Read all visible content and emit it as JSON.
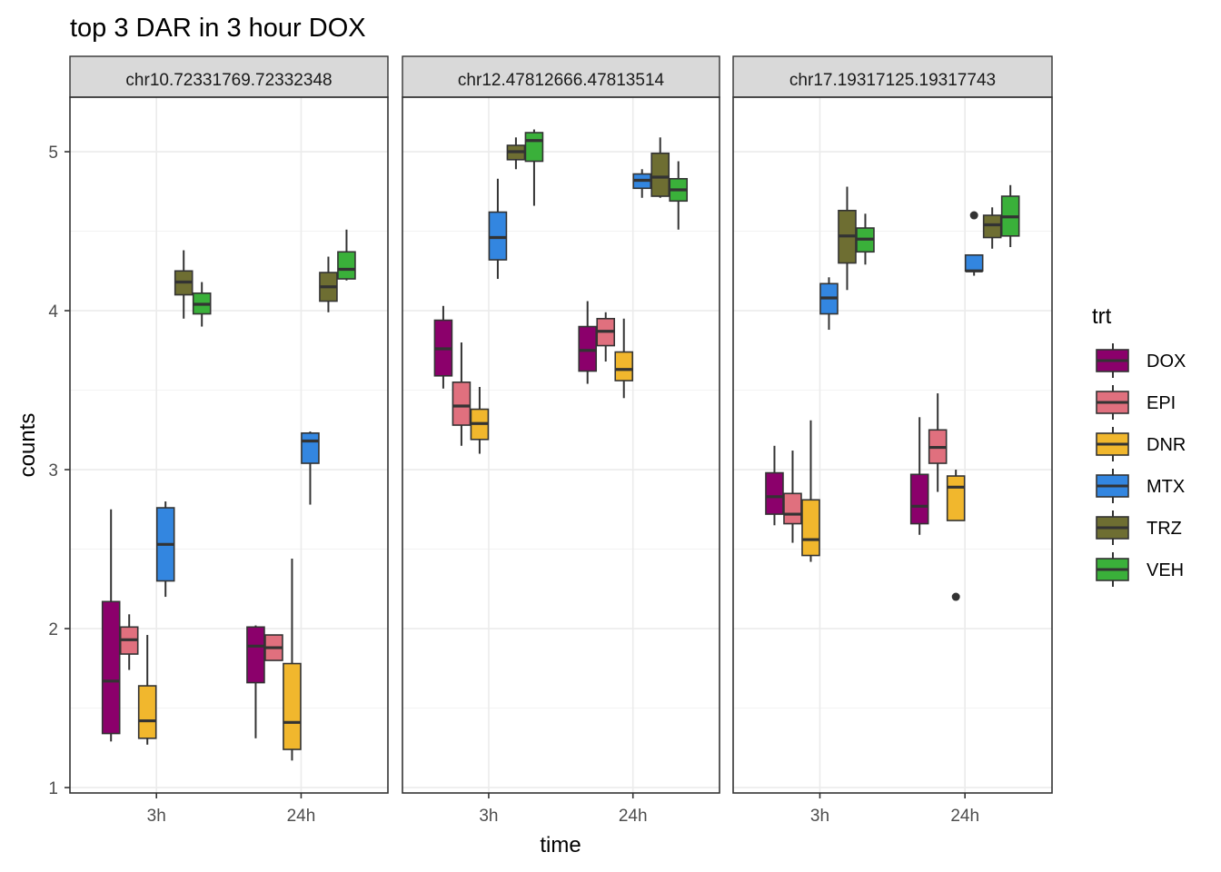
{
  "chart_data": {
    "type": "boxplot",
    "title": "top 3 DAR in 3 hour DOX",
    "xlabel": "time",
    "ylabel": "counts",
    "ylim": [
      0.966,
      5.343
    ],
    "yticks": [
      1,
      2,
      3,
      4,
      5
    ],
    "y_tick_labels": [
      "1",
      "2",
      "3",
      "4",
      "5"
    ],
    "categories": [
      "3h",
      "24h"
    ],
    "grid": true,
    "legend": {
      "title": "trt",
      "position": "right",
      "entries": [
        {
          "name": "DOX",
          "color": "#8b006b"
        },
        {
          "name": "EPI",
          "color": "#e0707e"
        },
        {
          "name": "DNR",
          "color": "#f1b72d"
        },
        {
          "name": "MTX",
          "color": "#3386e0"
        },
        {
          "name": "TRZ",
          "color": "#6e6e32"
        },
        {
          "name": "VEH",
          "color": "#3ab03a"
        }
      ]
    },
    "panels": [
      {
        "label": "chr10.72331769.72332348",
        "groups": {
          "3h": [
            {
              "trt": "DOX",
              "whisker_low": 1.29,
              "q1": 1.34,
              "median": 1.67,
              "q3": 2.17,
              "whisker_high": 2.75,
              "outliers": []
            },
            {
              "trt": "EPI",
              "whisker_low": 1.74,
              "q1": 1.84,
              "median": 1.93,
              "q3": 2.01,
              "whisker_high": 2.09,
              "outliers": []
            },
            {
              "trt": "DNR",
              "whisker_low": 1.27,
              "q1": 1.31,
              "median": 1.42,
              "q3": 1.64,
              "whisker_high": 1.96,
              "outliers": []
            },
            {
              "trt": "MTX",
              "whisker_low": 2.2,
              "q1": 2.3,
              "median": 2.53,
              "q3": 2.76,
              "whisker_high": 2.8,
              "outliers": []
            },
            {
              "trt": "TRZ",
              "whisker_low": 3.95,
              "q1": 4.1,
              "median": 4.18,
              "q3": 4.25,
              "whisker_high": 4.38,
              "outliers": []
            },
            {
              "trt": "VEH",
              "whisker_low": 3.9,
              "q1": 3.98,
              "median": 4.04,
              "q3": 4.11,
              "whisker_high": 4.18,
              "outliers": []
            }
          ],
          "24h": [
            {
              "trt": "DOX",
              "whisker_low": 1.31,
              "q1": 1.66,
              "median": 1.89,
              "q3": 2.01,
              "whisker_high": 2.02,
              "outliers": []
            },
            {
              "trt": "EPI",
              "whisker_low": 1.8,
              "q1": 1.8,
              "median": 1.88,
              "q3": 1.96,
              "whisker_high": 1.96,
              "outliers": []
            },
            {
              "trt": "DNR",
              "whisker_low": 1.17,
              "q1": 1.24,
              "median": 1.41,
              "q3": 1.78,
              "whisker_high": 2.44,
              "outliers": []
            },
            {
              "trt": "MTX",
              "whisker_low": 2.78,
              "q1": 3.04,
              "median": 3.18,
              "q3": 3.23,
              "whisker_high": 3.24,
              "outliers": []
            },
            {
              "trt": "TRZ",
              "whisker_low": 3.99,
              "q1": 4.06,
              "median": 4.15,
              "q3": 4.24,
              "whisker_high": 4.34,
              "outliers": []
            },
            {
              "trt": "VEH",
              "whisker_low": 4.19,
              "q1": 4.2,
              "median": 4.26,
              "q3": 4.37,
              "whisker_high": 4.51,
              "outliers": []
            }
          ]
        }
      },
      {
        "label": "chr12.47812666.47813514",
        "groups": {
          "3h": [
            {
              "trt": "DOX",
              "whisker_low": 3.51,
              "q1": 3.59,
              "median": 3.76,
              "q3": 3.94,
              "whisker_high": 4.03,
              "outliers": []
            },
            {
              "trt": "EPI",
              "whisker_low": 3.15,
              "q1": 3.28,
              "median": 3.4,
              "q3": 3.55,
              "whisker_high": 3.8,
              "outliers": []
            },
            {
              "trt": "DNR",
              "whisker_low": 3.1,
              "q1": 3.19,
              "median": 3.29,
              "q3": 3.38,
              "whisker_high": 3.52,
              "outliers": []
            },
            {
              "trt": "MTX",
              "whisker_low": 4.2,
              "q1": 4.32,
              "median": 4.46,
              "q3": 4.62,
              "whisker_high": 4.83,
              "outliers": []
            },
            {
              "trt": "TRZ",
              "whisker_low": 4.89,
              "q1": 4.95,
              "median": 5.0,
              "q3": 5.04,
              "whisker_high": 5.09,
              "outliers": []
            },
            {
              "trt": "VEH",
              "whisker_low": 4.66,
              "q1": 4.94,
              "median": 5.07,
              "q3": 5.12,
              "whisker_high": 5.14,
              "outliers": []
            }
          ],
          "24h": [
            {
              "trt": "DOX",
              "whisker_low": 3.54,
              "q1": 3.62,
              "median": 3.75,
              "q3": 3.9,
              "whisker_high": 4.06,
              "outliers": []
            },
            {
              "trt": "EPI",
              "whisker_low": 3.68,
              "q1": 3.78,
              "median": 3.87,
              "q3": 3.95,
              "whisker_high": 3.99,
              "outliers": []
            },
            {
              "trt": "DNR",
              "whisker_low": 3.45,
              "q1": 3.56,
              "median": 3.63,
              "q3": 3.74,
              "whisker_high": 3.95,
              "outliers": []
            },
            {
              "trt": "MTX",
              "whisker_low": 4.71,
              "q1": 4.77,
              "median": 4.82,
              "q3": 4.86,
              "whisker_high": 4.89,
              "outliers": []
            },
            {
              "trt": "TRZ",
              "whisker_low": 4.71,
              "q1": 4.72,
              "median": 4.84,
              "q3": 4.99,
              "whisker_high": 5.09,
              "outliers": []
            },
            {
              "trt": "VEH",
              "whisker_low": 4.51,
              "q1": 4.69,
              "median": 4.76,
              "q3": 4.83,
              "whisker_high": 4.94,
              "outliers": []
            }
          ]
        }
      },
      {
        "label": "chr17.19317125.19317743",
        "groups": {
          "3h": [
            {
              "trt": "DOX",
              "whisker_low": 2.65,
              "q1": 2.72,
              "median": 2.83,
              "q3": 2.98,
              "whisker_high": 3.15,
              "outliers": []
            },
            {
              "trt": "EPI",
              "whisker_low": 2.54,
              "q1": 2.66,
              "median": 2.72,
              "q3": 2.85,
              "whisker_high": 3.12,
              "outliers": []
            },
            {
              "trt": "DNR",
              "whisker_low": 2.42,
              "q1": 2.46,
              "median": 2.56,
              "q3": 2.81,
              "whisker_high": 3.31,
              "outliers": []
            },
            {
              "trt": "MTX",
              "whisker_low": 3.88,
              "q1": 3.98,
              "median": 4.08,
              "q3": 4.17,
              "whisker_high": 4.21,
              "outliers": []
            },
            {
              "trt": "TRZ",
              "whisker_low": 4.13,
              "q1": 4.3,
              "median": 4.47,
              "q3": 4.63,
              "whisker_high": 4.78,
              "outliers": []
            },
            {
              "trt": "VEH",
              "whisker_low": 4.29,
              "q1": 4.37,
              "median": 4.45,
              "q3": 4.52,
              "whisker_high": 4.61,
              "outliers": []
            }
          ],
          "24h": [
            {
              "trt": "DOX",
              "whisker_low": 2.59,
              "q1": 2.66,
              "median": 2.77,
              "q3": 2.97,
              "whisker_high": 3.33,
              "outliers": []
            },
            {
              "trt": "EPI",
              "whisker_low": 2.86,
              "q1": 3.04,
              "median": 3.14,
              "q3": 3.25,
              "whisker_high": 3.48,
              "outliers": []
            },
            {
              "trt": "DNR",
              "whisker_low": 2.68,
              "q1": 2.68,
              "median": 2.89,
              "q3": 2.96,
              "whisker_high": 3.0,
              "outliers": [
                2.2
              ]
            },
            {
              "trt": "MTX",
              "whisker_low": 4.22,
              "q1": 4.25,
              "median": 4.25,
              "q3": 4.35,
              "whisker_high": 4.35,
              "outliers": [
                4.6
              ]
            },
            {
              "trt": "TRZ",
              "whisker_low": 4.39,
              "q1": 4.46,
              "median": 4.54,
              "q3": 4.6,
              "whisker_high": 4.65,
              "outliers": []
            },
            {
              "trt": "VEH",
              "whisker_low": 4.4,
              "q1": 4.47,
              "median": 4.59,
              "q3": 4.72,
              "whisker_high": 4.79,
              "outliers": []
            }
          ]
        }
      }
    ]
  }
}
